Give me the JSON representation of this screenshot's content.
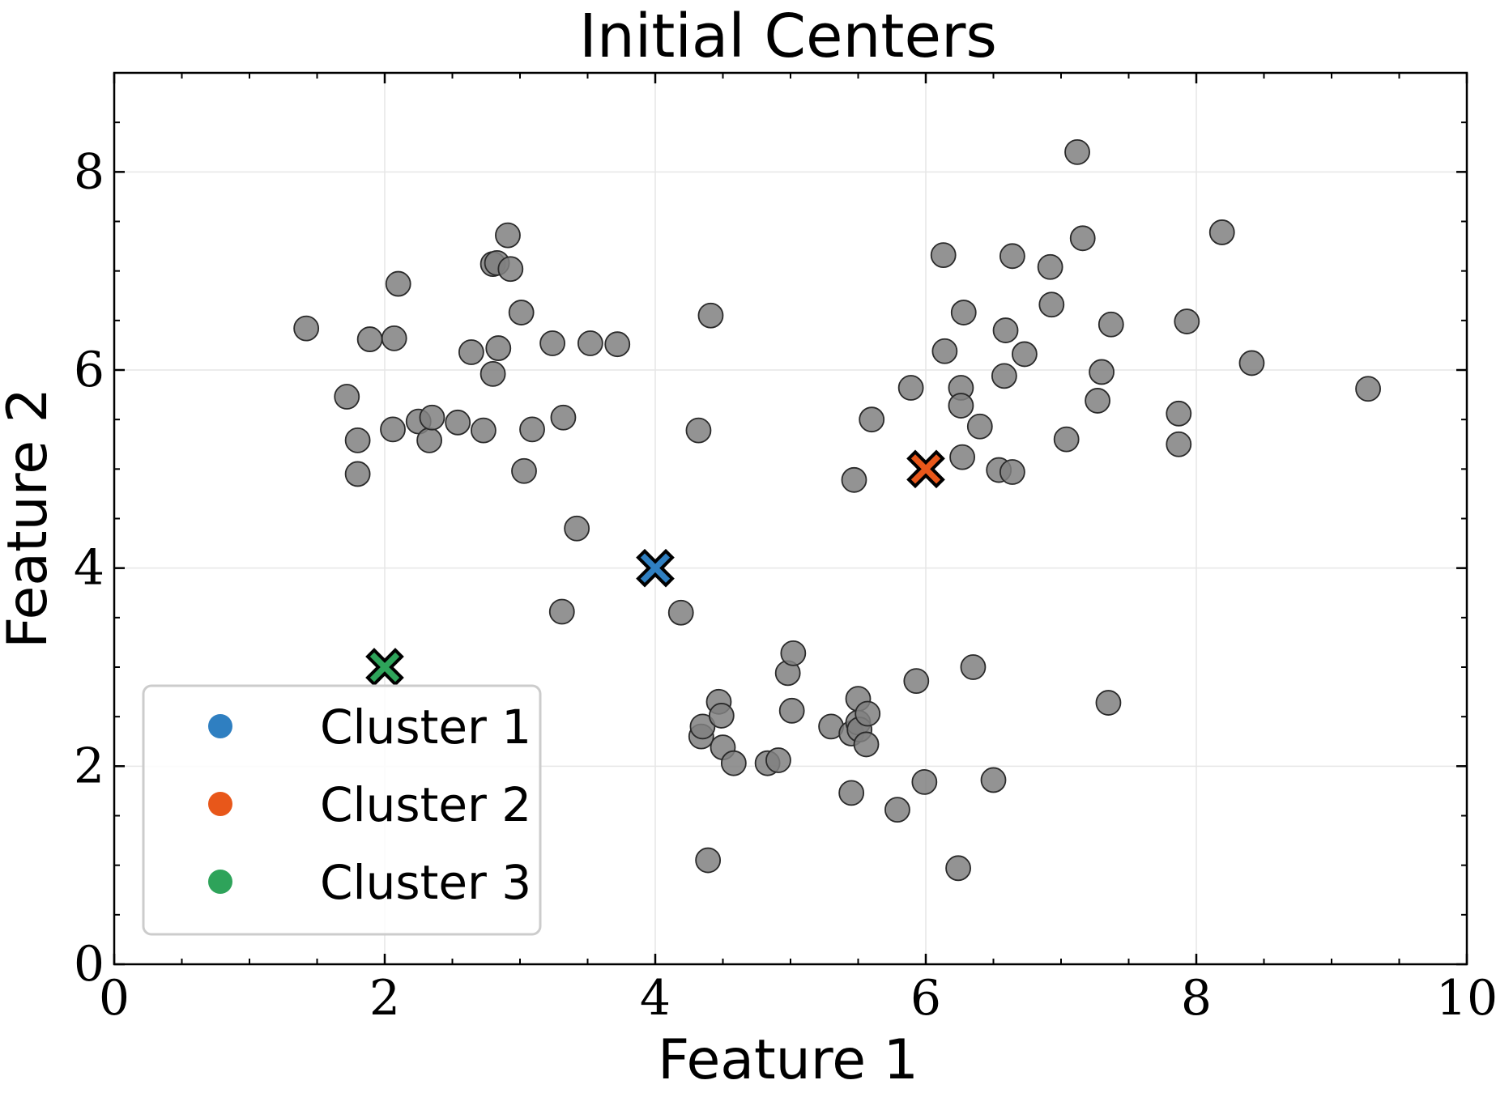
{
  "chart_data": {
    "type": "scatter",
    "title": "Initial Centers",
    "xlabel": "Feature 1",
    "ylabel": "Feature 2",
    "xlim": [
      0,
      10
    ],
    "ylim": [
      0,
      9
    ],
    "xticks": [
      0,
      2,
      4,
      6,
      8,
      10
    ],
    "yticks": [
      0,
      2,
      4,
      6,
      8
    ],
    "grid": true,
    "legend_position": "lower-left",
    "point_color": "#808080",
    "points": [
      {
        "x": 1.42,
        "y": 6.42
      },
      {
        "x": 1.72,
        "y": 5.73
      },
      {
        "x": 1.8,
        "y": 5.29
      },
      {
        "x": 1.8,
        "y": 4.95
      },
      {
        "x": 1.89,
        "y": 6.31
      },
      {
        "x": 2.07,
        "y": 6.32
      },
      {
        "x": 2.1,
        "y": 6.87
      },
      {
        "x": 2.06,
        "y": 5.4
      },
      {
        "x": 2.25,
        "y": 5.48
      },
      {
        "x": 2.33,
        "y": 5.29
      },
      {
        "x": 2.35,
        "y": 5.52
      },
      {
        "x": 2.54,
        "y": 5.47
      },
      {
        "x": 2.64,
        "y": 6.18
      },
      {
        "x": 2.73,
        "y": 5.39
      },
      {
        "x": 2.8,
        "y": 7.07
      },
      {
        "x": 2.83,
        "y": 7.08
      },
      {
        "x": 2.84,
        "y": 6.22
      },
      {
        "x": 2.8,
        "y": 5.96
      },
      {
        "x": 2.91,
        "y": 7.36
      },
      {
        "x": 2.93,
        "y": 7.02
      },
      {
        "x": 3.01,
        "y": 6.58
      },
      {
        "x": 3.03,
        "y": 4.98
      },
      {
        "x": 3.09,
        "y": 5.4
      },
      {
        "x": 3.24,
        "y": 6.27
      },
      {
        "x": 3.32,
        "y": 5.52
      },
      {
        "x": 3.52,
        "y": 6.27
      },
      {
        "x": 3.72,
        "y": 6.26
      },
      {
        "x": 3.42,
        "y": 4.4
      },
      {
        "x": 3.31,
        "y": 3.56
      },
      {
        "x": 4.32,
        "y": 5.39
      },
      {
        "x": 4.41,
        "y": 6.55
      },
      {
        "x": 4.19,
        "y": 3.55
      },
      {
        "x": 4.34,
        "y": 2.3
      },
      {
        "x": 4.35,
        "y": 2.4
      },
      {
        "x": 4.47,
        "y": 2.65
      },
      {
        "x": 4.49,
        "y": 2.51
      },
      {
        "x": 4.5,
        "y": 2.19
      },
      {
        "x": 4.58,
        "y": 2.03
      },
      {
        "x": 4.39,
        "y": 1.05
      },
      {
        "x": 4.83,
        "y": 2.03
      },
      {
        "x": 4.91,
        "y": 2.06
      },
      {
        "x": 4.98,
        "y": 2.94
      },
      {
        "x": 5.02,
        "y": 3.14
      },
      {
        "x": 5.01,
        "y": 2.56
      },
      {
        "x": 5.3,
        "y": 2.4
      },
      {
        "x": 5.45,
        "y": 2.33
      },
      {
        "x": 5.5,
        "y": 2.68
      },
      {
        "x": 5.5,
        "y": 2.44
      },
      {
        "x": 5.51,
        "y": 2.37
      },
      {
        "x": 5.57,
        "y": 2.53
      },
      {
        "x": 5.56,
        "y": 2.22
      },
      {
        "x": 5.45,
        "y": 1.73
      },
      {
        "x": 5.79,
        "y": 1.56
      },
      {
        "x": 5.93,
        "y": 2.86
      },
      {
        "x": 5.99,
        "y": 1.84
      },
      {
        "x": 6.24,
        "y": 0.97
      },
      {
        "x": 6.35,
        "y": 3.0
      },
      {
        "x": 6.5,
        "y": 1.86
      },
      {
        "x": 7.35,
        "y": 2.64
      },
      {
        "x": 5.47,
        "y": 4.89
      },
      {
        "x": 5.6,
        "y": 5.5
      },
      {
        "x": 5.89,
        "y": 5.82
      },
      {
        "x": 6.13,
        "y": 7.16
      },
      {
        "x": 6.14,
        "y": 6.19
      },
      {
        "x": 6.26,
        "y": 5.82
      },
      {
        "x": 6.26,
        "y": 5.64
      },
      {
        "x": 6.28,
        "y": 6.58
      },
      {
        "x": 6.27,
        "y": 5.12
      },
      {
        "x": 6.4,
        "y": 5.43
      },
      {
        "x": 6.54,
        "y": 4.99
      },
      {
        "x": 6.58,
        "y": 5.94
      },
      {
        "x": 6.59,
        "y": 6.4
      },
      {
        "x": 6.64,
        "y": 7.15
      },
      {
        "x": 6.64,
        "y": 4.97
      },
      {
        "x": 6.73,
        "y": 6.16
      },
      {
        "x": 6.92,
        "y": 7.04
      },
      {
        "x": 6.93,
        "y": 6.66
      },
      {
        "x": 7.04,
        "y": 5.3
      },
      {
        "x": 7.12,
        "y": 8.2
      },
      {
        "x": 7.16,
        "y": 7.33
      },
      {
        "x": 7.27,
        "y": 5.69
      },
      {
        "x": 7.3,
        "y": 5.98
      },
      {
        "x": 7.37,
        "y": 6.46
      },
      {
        "x": 7.87,
        "y": 5.56
      },
      {
        "x": 7.87,
        "y": 5.25
      },
      {
        "x": 7.93,
        "y": 6.49
      },
      {
        "x": 8.19,
        "y": 7.39
      },
      {
        "x": 8.41,
        "y": 6.07
      },
      {
        "x": 9.27,
        "y": 5.81
      }
    ],
    "centers": [
      {
        "name": "Cluster 1",
        "x": 4,
        "y": 4,
        "color": "#2f7fc1"
      },
      {
        "name": "Cluster 2",
        "x": 6,
        "y": 5,
        "color": "#e8571a"
      },
      {
        "name": "Cluster 3",
        "x": 2,
        "y": 3,
        "color": "#2ea35a"
      }
    ],
    "legend": [
      "Cluster 1",
      "Cluster 2",
      "Cluster 3"
    ]
  }
}
